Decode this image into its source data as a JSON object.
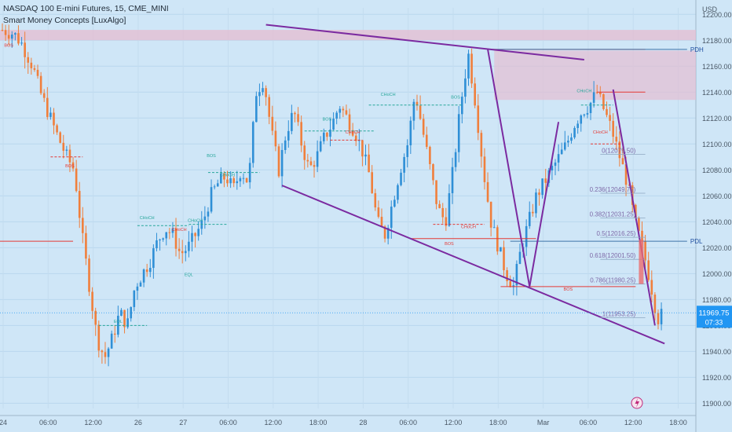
{
  "header": {
    "symbol_line": "NASDAQ 100 E-mini Futures, 15, CME_MINI",
    "indicator_line": "Smart Money Concepts [LuxAlgo]"
  },
  "colors": {
    "background": "#cfe6f7",
    "up_candle": "#2f8fd6",
    "down_candle": "#f07f3c",
    "trendline": "#7b2aa0",
    "zone": "#e6bcd0",
    "bos_red": "#e53935",
    "choch_teal": "#26a69a",
    "fib_text": "#7e6aa8",
    "price_badge": "#2196f3"
  },
  "chart_data": {
    "type": "candlestick",
    "title": "NASDAQ 100 E-mini Futures, 15, CME_MINI",
    "y_axis": {
      "unit_label": "USD",
      "ylim": [
        11896,
        12205
      ],
      "ticks": [
        12200,
        12180,
        12160,
        12140,
        12120,
        12100,
        12080,
        12060,
        12040,
        12020,
        12000,
        11980,
        11960,
        11940,
        11920,
        11900
      ],
      "tick_labels": [
        "12200.00",
        "12180.00",
        "12160.00",
        "12140.00",
        "12120.00",
        "12100.00",
        "12080.00",
        "12060.00",
        "12040.00",
        "12020.00",
        "12000.00",
        "11980.00",
        "11960.00",
        "11940.00",
        "11920.00",
        "11900.00"
      ]
    },
    "x_axis": {
      "tick_labels": [
        "24",
        "06:00",
        "12:00",
        "26",
        "27",
        "06:00",
        "12:00",
        "18:00",
        "28",
        "06:00",
        "12:00",
        "18:00",
        "Mar",
        "06:00",
        "12:00",
        "18:00"
      ]
    },
    "price_path": [
      [
        0,
        12188
      ],
      [
        3,
        12185
      ],
      [
        5,
        12178
      ],
      [
        8,
        12160
      ],
      [
        10,
        12140
      ],
      [
        14,
        12110
      ],
      [
        17,
        12090
      ],
      [
        19,
        12080
      ],
      [
        21,
        12030
      ],
      [
        23,
        11990
      ],
      [
        25,
        11950
      ],
      [
        27,
        11935
      ],
      [
        29,
        11950
      ],
      [
        31,
        11970
      ],
      [
        33,
        11960
      ],
      [
        35,
        11990
      ],
      [
        37,
        12000
      ],
      [
        39,
        12010
      ],
      [
        41,
        12025
      ],
      [
        43,
        12035
      ],
      [
        45,
        12030
      ],
      [
        47,
        12015
      ],
      [
        49,
        12020
      ],
      [
        51,
        12030
      ],
      [
        53,
        12040
      ],
      [
        55,
        12060
      ],
      [
        57,
        12070
      ],
      [
        59,
        12075
      ],
      [
        61,
        12065
      ],
      [
        63,
        12080
      ],
      [
        65,
        12070
      ],
      [
        67,
        12140
      ],
      [
        69,
        12150
      ],
      [
        71,
        12110
      ],
      [
        73,
        12080
      ],
      [
        75,
        12110
      ],
      [
        77,
        12125
      ],
      [
        79,
        12100
      ],
      [
        81,
        12080
      ],
      [
        83,
        12090
      ],
      [
        85,
        12105
      ],
      [
        87,
        12115
      ],
      [
        89,
        12130
      ],
      [
        91,
        12120
      ],
      [
        93,
        12110
      ],
      [
        95,
        12095
      ],
      [
        97,
        12075
      ],
      [
        99,
        12040
      ],
      [
        101,
        12030
      ],
      [
        103,
        12055
      ],
      [
        105,
        12080
      ],
      [
        107,
        12100
      ],
      [
        109,
        12140
      ],
      [
        111,
        12110
      ],
      [
        113,
        12080
      ],
      [
        115,
        12050
      ],
      [
        117,
        12040
      ],
      [
        119,
        12080
      ],
      [
        121,
        12130
      ],
      [
        123,
        12170
      ],
      [
        125,
        12130
      ],
      [
        127,
        12080
      ],
      [
        129,
        12040
      ],
      [
        131,
        12020
      ],
      [
        133,
        12000
      ],
      [
        135,
        11990
      ],
      [
        137,
        12020
      ],
      [
        139,
        12040
      ],
      [
        141,
        12060
      ],
      [
        143,
        12070
      ],
      [
        145,
        12080
      ],
      [
        147,
        12090
      ],
      [
        149,
        12100
      ],
      [
        151,
        12115
      ],
      [
        153,
        12125
      ],
      [
        155,
        12130
      ],
      [
        157,
        12140
      ],
      [
        159,
        12125
      ],
      [
        161,
        12110
      ],
      [
        163,
        12090
      ],
      [
        165,
        12070
      ],
      [
        167,
        12040
      ],
      [
        169,
        12020
      ],
      [
        171,
        11995
      ],
      [
        173,
        11965
      ],
      [
        174,
        11968
      ]
    ],
    "last_price": "11969.75",
    "countdown": "07:33",
    "levels": [
      {
        "label": "PDH",
        "value": 12173
      },
      {
        "label": "PDL",
        "value": 12025
      }
    ],
    "fibonacci": [
      {
        "label": "0(12079.50)",
        "value": 12092
      },
      {
        "label": "0.236(12049.75)",
        "value": 12062
      },
      {
        "label": "0.382(12031.25)",
        "value": 12043
      },
      {
        "label": "0.5(12016.25)",
        "value": 12028
      },
      {
        "label": "0.618(12001.50)",
        "value": 12011
      },
      {
        "label": "0.786(11980.25)",
        "value": 11992
      },
      {
        "label": "1(11953.25)",
        "value": 11966
      }
    ],
    "annotations": [
      {
        "text": "BOS",
        "x": 2,
        "y": 12175,
        "color": "bos_red"
      },
      {
        "text": "BOS",
        "x": 21,
        "y": 12082,
        "color": "bos_red"
      },
      {
        "text": "CHoCH",
        "x": 45,
        "y": 12042,
        "color": "choch_teal"
      },
      {
        "text": "CHoCH",
        "x": 55,
        "y": 12033,
        "color": "bos_red"
      },
      {
        "text": "CHoCH",
        "x": 60,
        "y": 12040,
        "color": "choch_teal"
      },
      {
        "text": "EQL",
        "x": 58,
        "y": 11998,
        "color": "choch_teal"
      },
      {
        "text": "EQL",
        "x": 36,
        "y": 11962,
        "color": "choch_teal"
      },
      {
        "text": "BOS",
        "x": 65,
        "y": 12090,
        "color": "choch_teal"
      },
      {
        "text": "CHoCH",
        "x": 70,
        "y": 12075,
        "color": "choch_teal"
      },
      {
        "text": "BOS",
        "x": 101,
        "y": 12118,
        "color": "choch_teal"
      },
      {
        "text": "CHoCH",
        "x": 109,
        "y": 12108,
        "color": "bos_red"
      },
      {
        "text": "CHoCH",
        "x": 120,
        "y": 12137,
        "color": "choch_teal"
      },
      {
        "text": "BOS",
        "x": 141,
        "y": 12135,
        "color": "choch_teal"
      },
      {
        "text": "CHoCH",
        "x": 145,
        "y": 12035,
        "color": "bos_red"
      },
      {
        "text": "BOS",
        "x": 139,
        "y": 12022,
        "color": "bos_red"
      },
      {
        "text": "CHoCH",
        "x": 181,
        "y": 12140,
        "color": "choch_teal"
      },
      {
        "text": "CHoCH",
        "x": 186,
        "y": 12108,
        "color": "bos_red"
      },
      {
        "text": "BOS",
        "x": 176,
        "y": 11987,
        "color": "bos_red"
      }
    ]
  }
}
